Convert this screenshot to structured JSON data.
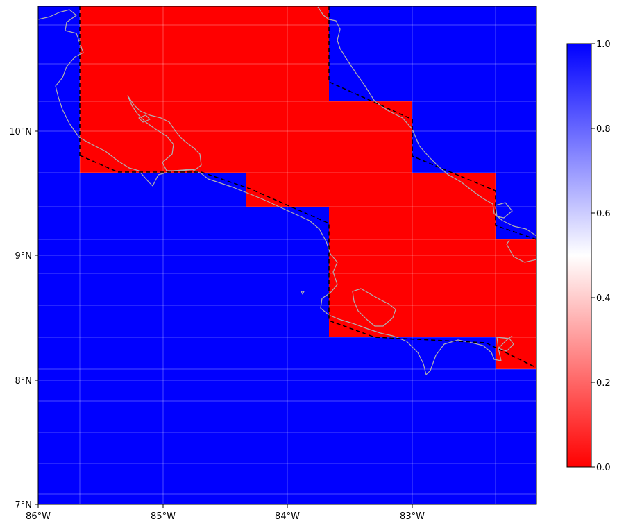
{
  "map": {
    "x_ticks": [
      "86°W",
      "85°W",
      "84°W",
      "83°W"
    ],
    "y_ticks": [
      "7°N",
      "8°N",
      "9°N",
      "10°N"
    ],
    "lon_range": [
      -86,
      -82
    ],
    "lat_range": [
      7,
      11
    ],
    "colors": {
      "land_mask": "#ff0000",
      "sea_mask": "#0000ff",
      "coastline": "#b0b0b0",
      "boundary": "#000000"
    }
  },
  "colorbar": {
    "ticks": [
      "0.0",
      "0.2",
      "0.4",
      "0.6",
      "0.8",
      "1.0"
    ],
    "range": [
      0,
      1
    ],
    "colors": [
      "#ff0000",
      "#ffffff",
      "#0000ff"
    ]
  }
}
